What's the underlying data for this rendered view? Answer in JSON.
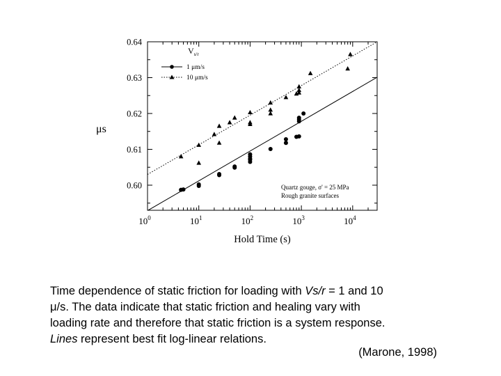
{
  "chart_data": {
    "type": "scatter",
    "xscale": "log",
    "xlabel": "Hold Time (s)",
    "ylabel": "μs",
    "xlim": [
      1,
      30000
    ],
    "ylim": [
      0.593,
      0.64
    ],
    "xticks": [
      1,
      10,
      100,
      1000,
      10000
    ],
    "xtick_labels": [
      {
        "base": "10",
        "exp": "0"
      },
      {
        "base": "10",
        "exp": "1"
      },
      {
        "base": "10",
        "exp": "2"
      },
      {
        "base": "10",
        "exp": "3"
      },
      {
        "base": "10",
        "exp": "4"
      }
    ],
    "yticks": [
      0.6,
      0.61,
      0.62,
      0.63,
      0.64
    ],
    "ytick_labels": [
      "0.60",
      "0.61",
      "0.62",
      "0.63",
      "0.64"
    ],
    "legend": {
      "title": "Vs/r",
      "title_main": "V",
      "title_sub": "s/r",
      "placement": "top-left",
      "entries": [
        "1 μm/s",
        "10 μm/s"
      ]
    },
    "annotation": [
      "Quartz gouge, σ' = 25 MPa",
      "Rough granite surfaces"
    ],
    "annotation_placement": "bottom-right",
    "series": [
      {
        "marker": "circle",
        "points": [
          [
            4.5,
            0.5987
          ],
          [
            5,
            0.5988
          ],
          [
            10,
            0.5998
          ],
          [
            10,
            0.6002
          ],
          [
            25,
            0.6028
          ],
          [
            25,
            0.6031
          ],
          [
            50,
            0.6049
          ],
          [
            50,
            0.6052
          ],
          [
            100,
            0.6065
          ],
          [
            100,
            0.6071
          ],
          [
            100,
            0.6074
          ],
          [
            100,
            0.608
          ],
          [
            100,
            0.6086
          ],
          [
            250,
            0.6101
          ],
          [
            500,
            0.6118
          ],
          [
            500,
            0.6128
          ],
          [
            800,
            0.6135
          ],
          [
            900,
            0.6136
          ],
          [
            900,
            0.6178
          ],
          [
            900,
            0.6183
          ],
          [
            900,
            0.6188
          ],
          [
            1100,
            0.62
          ]
        ],
        "fit": [
          [
            1,
            0.5929
          ],
          [
            30000,
            0.6301
          ]
        ],
        "fit_style": "solid"
      },
      {
        "marker": "triangle",
        "points": [
          [
            4.5,
            0.608
          ],
          [
            10,
            0.6062
          ],
          [
            10,
            0.6112
          ],
          [
            20,
            0.6142
          ],
          [
            25,
            0.6118
          ],
          [
            25,
            0.6165
          ],
          [
            40,
            0.6175
          ],
          [
            50,
            0.6188
          ],
          [
            100,
            0.617
          ],
          [
            100,
            0.6175
          ],
          [
            100,
            0.6203
          ],
          [
            250,
            0.62
          ],
          [
            250,
            0.621
          ],
          [
            250,
            0.623
          ],
          [
            500,
            0.6245
          ],
          [
            800,
            0.6255
          ],
          [
            900,
            0.6258
          ],
          [
            900,
            0.6265
          ],
          [
            900,
            0.6275
          ],
          [
            1500,
            0.6312
          ],
          [
            8000,
            0.6325
          ],
          [
            9000,
            0.6365
          ]
        ],
        "fit": [
          [
            1,
            0.603
          ],
          [
            30000,
            0.64
          ]
        ],
        "fit_style": "dotted"
      }
    ]
  },
  "caption": {
    "lines": [
      [
        {
          "t": "Time dependence of static friction for loading with "
        },
        {
          "t": "Vs/r",
          "i": true
        },
        {
          "t": " = 1 and 10"
        }
      ],
      [
        {
          "t": "μ/s. The data indicate that static friction and healing vary with"
        }
      ],
      [
        {
          "t": "loading rate and therefore that static friction is a system response."
        }
      ],
      [
        {
          "t": "Lines",
          "i": true
        },
        {
          "t": " represent best fit log-linear relations."
        }
      ]
    ]
  },
  "citation": "(Marone, 1998)"
}
